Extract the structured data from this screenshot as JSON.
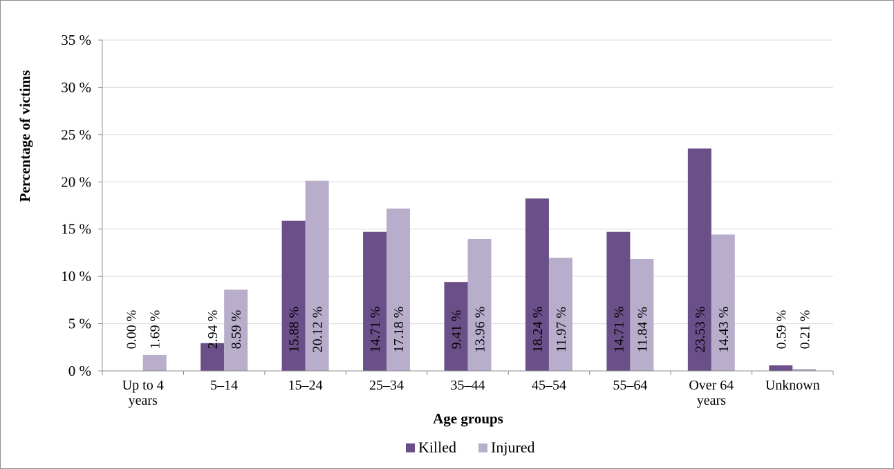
{
  "chart_data": {
    "type": "bar",
    "title": "",
    "xlabel": "Age groups",
    "ylabel": "Percentage of victims",
    "ylim": [
      0,
      35
    ],
    "ytick_step": 5,
    "ytick_suffix": " %",
    "grid": true,
    "legend_position": "bottom",
    "categories": [
      [
        "Up to 4",
        "years"
      ],
      [
        "5–14"
      ],
      [
        "15–24"
      ],
      [
        "25–34"
      ],
      [
        "35–44"
      ],
      [
        "45–54"
      ],
      [
        "55–64"
      ],
      [
        "Over 64",
        "years"
      ],
      [
        "Unknown"
      ]
    ],
    "series": [
      {
        "name": "Killed",
        "color": "#6a4f88",
        "values": [
          0.0,
          2.94,
          15.88,
          14.71,
          9.41,
          18.24,
          14.71,
          23.53,
          0.59
        ],
        "labels": [
          "0.00 %",
          "2.94 %",
          "15.88 %",
          "14.71 %",
          "9.41 %",
          "18.24 %",
          "14.71 %",
          "23.53 %",
          "0.59 %"
        ]
      },
      {
        "name": "Injured",
        "color": "#b8aecb",
        "values": [
          1.69,
          8.59,
          20.12,
          17.18,
          13.96,
          11.97,
          11.84,
          14.43,
          0.21
        ],
        "labels": [
          "1.69 %",
          "8.59 %",
          "20.12 %",
          "17.18 %",
          "13.96 %",
          "11.97 %",
          "11.84 %",
          "14.43 %",
          "0.21 %"
        ]
      }
    ]
  }
}
